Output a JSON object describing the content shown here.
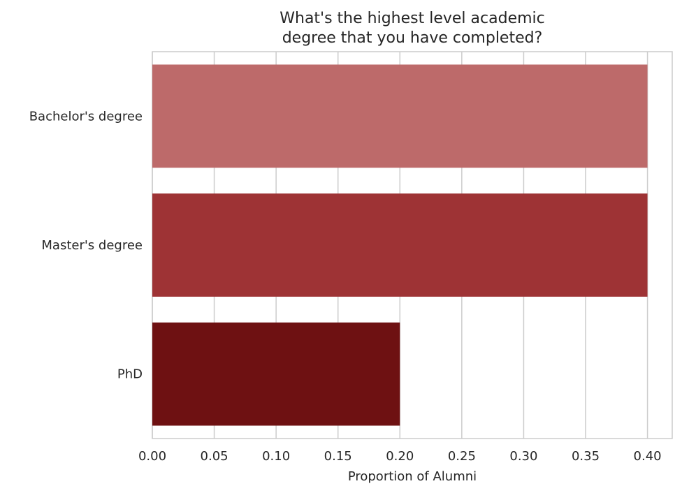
{
  "chart_data": {
    "type": "bar",
    "orientation": "horizontal",
    "title_lines": [
      "What's the highest level academic",
      "degree that you have completed?"
    ],
    "xlabel": "Proportion of Alumni",
    "ylabel": "",
    "categories": [
      "Bachelor's degree",
      "Master's degree",
      "PhD"
    ],
    "values": [
      0.4,
      0.4,
      0.2
    ],
    "colors": [
      "#bd6a6a",
      "#9e3335",
      "#6e1112"
    ],
    "xlim": [
      0,
      0.42
    ],
    "xticks": [
      "0.00",
      "0.05",
      "0.10",
      "0.15",
      "0.20",
      "0.25",
      "0.30",
      "0.35",
      "0.40"
    ],
    "grid": true,
    "grid_color": "#cccccc"
  }
}
